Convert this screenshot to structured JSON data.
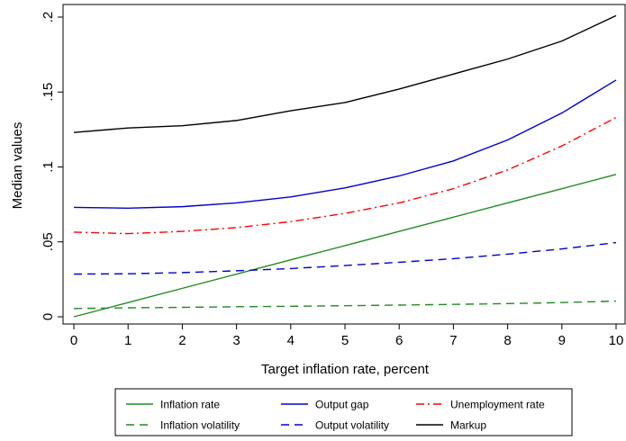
{
  "chart_data": {
    "type": "line",
    "title": "",
    "xlabel": "Target inflation rate, percent",
    "ylabel": "Median values",
    "xlim": [
      0,
      10
    ],
    "ylim": [
      0,
      0.2
    ],
    "xticks": [
      0,
      1,
      2,
      3,
      4,
      5,
      6,
      7,
      8,
      9,
      10
    ],
    "xtick_labels": [
      "0",
      "1",
      "2",
      "3",
      "4",
      "5",
      "6",
      "7",
      "8",
      "9",
      "10"
    ],
    "yticks": [
      0,
      0.05,
      0.1,
      0.15,
      0.2
    ],
    "ytick_labels": [
      "0",
      ".05",
      ".1",
      ".15",
      ".2"
    ],
    "grid": false,
    "legend_position": "bottom",
    "x": [
      0,
      1,
      2,
      3,
      4,
      5,
      6,
      7,
      8,
      9,
      10
    ],
    "series": [
      {
        "name": "Inflation rate",
        "color": "#228B22",
        "dash": "solid",
        "values": [
          0.0,
          0.0095,
          0.019,
          0.0285,
          0.038,
          0.0475,
          0.057,
          0.0665,
          0.076,
          0.0855,
          0.095
        ]
      },
      {
        "name": "Output gap",
        "color": "#0000CD",
        "dash": "solid",
        "values": [
          0.073,
          0.0725,
          0.0735,
          0.076,
          0.08,
          0.086,
          0.094,
          0.104,
          0.118,
          0.136,
          0.158
        ]
      },
      {
        "name": "Unemployment rate",
        "color": "#FF0000",
        "dash": "dashdot",
        "values": [
          0.0565,
          0.0555,
          0.057,
          0.0595,
          0.0635,
          0.069,
          0.076,
          0.0855,
          0.098,
          0.114,
          0.133
        ]
      },
      {
        "name": "Inflation volatility",
        "color": "#228B22",
        "dash": "dash",
        "values": [
          0.0055,
          0.006,
          0.0063,
          0.0067,
          0.007,
          0.0074,
          0.0078,
          0.0083,
          0.0088,
          0.0095,
          0.0105
        ]
      },
      {
        "name": "Output volatility",
        "color": "#0000CD",
        "dash": "dash",
        "values": [
          0.0285,
          0.0287,
          0.0295,
          0.0307,
          0.0322,
          0.0342,
          0.0364,
          0.0388,
          0.0418,
          0.0453,
          0.0495
        ]
      },
      {
        "name": "Markup",
        "color": "#000000",
        "dash": "solid",
        "values": [
          0.123,
          0.126,
          0.1275,
          0.131,
          0.1375,
          0.143,
          0.152,
          0.162,
          0.172,
          0.184,
          0.201
        ]
      }
    ]
  }
}
